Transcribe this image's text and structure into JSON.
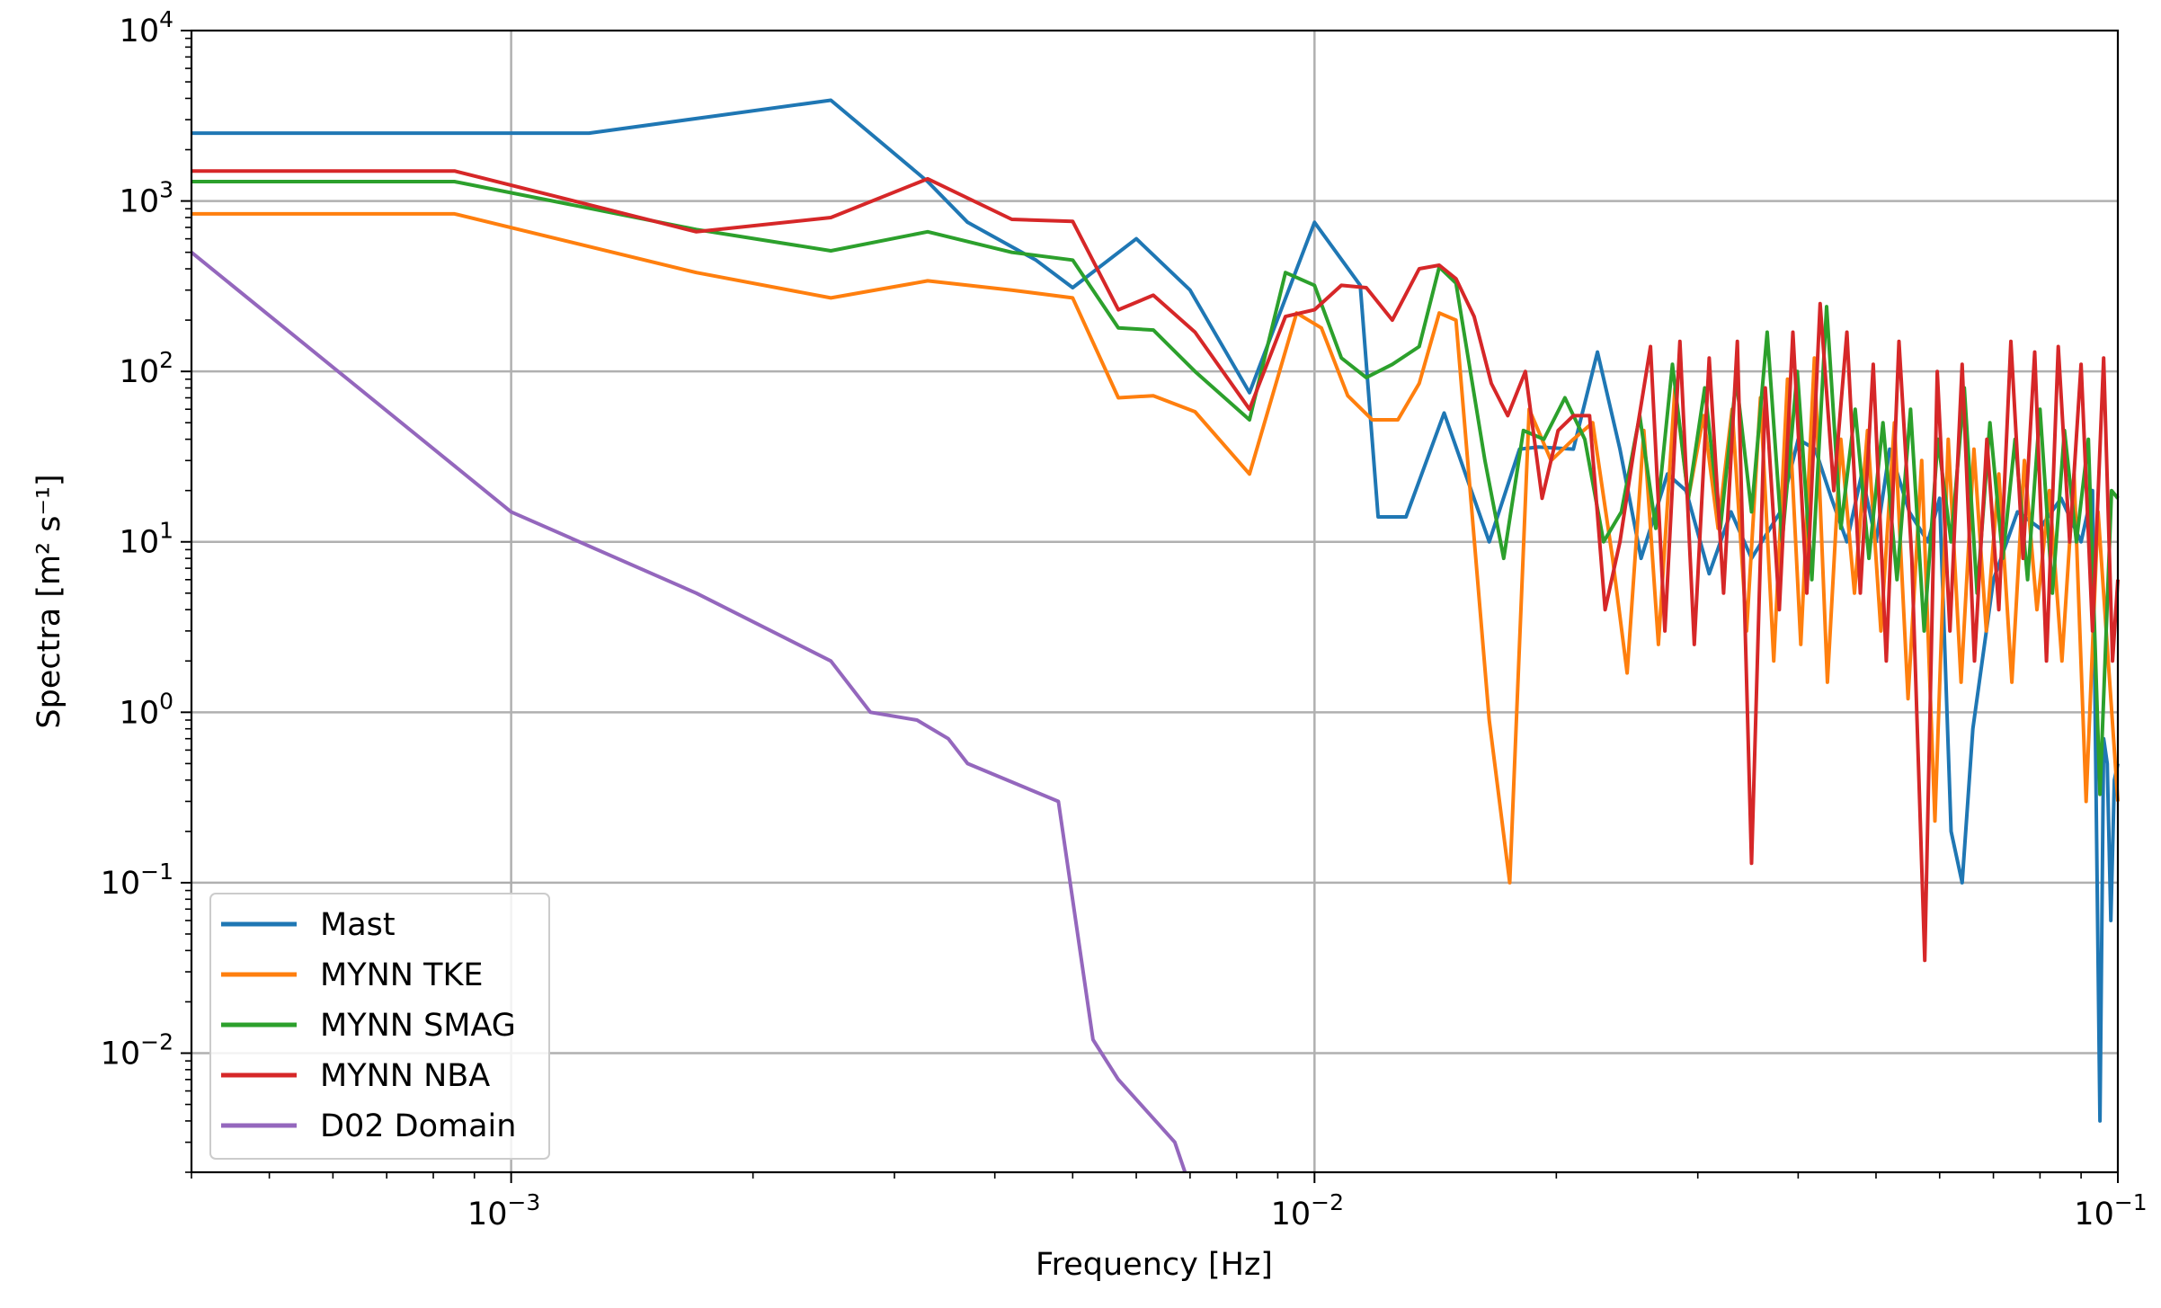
{
  "chart_data": {
    "type": "line",
    "title": "",
    "xlabel": "Frequency [Hz]",
    "ylabel": "Spectra [m² s⁻¹]",
    "xscale": "log",
    "yscale": "log",
    "xlim": [
      0.0004,
      0.1
    ],
    "ylim": [
      0.002,
      10000
    ],
    "grid": "major",
    "legend_position": "lower-left",
    "x_ticks": [
      {
        "value": 0.001,
        "base": "10",
        "exp": "−3"
      },
      {
        "value": 0.01,
        "base": "10",
        "exp": "−2"
      },
      {
        "value": 0.1,
        "base": "10",
        "exp": "−1"
      }
    ],
    "y_ticks": [
      {
        "value": 10000,
        "base": "10",
        "exp": "4"
      },
      {
        "value": 1000,
        "base": "10",
        "exp": "3"
      },
      {
        "value": 100,
        "base": "10",
        "exp": "2"
      },
      {
        "value": 10,
        "base": "10",
        "exp": "1"
      },
      {
        "value": 1,
        "base": "10",
        "exp": "0"
      },
      {
        "value": 0.1,
        "base": "10",
        "exp": "−1"
      },
      {
        "value": 0.01,
        "base": "10",
        "exp": "−2"
      }
    ],
    "series": [
      {
        "name": "Mast",
        "color": "#1f77b4",
        "x": [
          0.0004,
          0.00125,
          0.0025,
          0.0033,
          0.0037,
          0.0045,
          0.005,
          0.006,
          0.007,
          0.0083,
          0.01,
          0.0114,
          0.012,
          0.013,
          0.0145,
          0.0165,
          0.018,
          0.019,
          0.021,
          0.0225,
          0.024,
          0.0255,
          0.0275,
          0.029,
          0.031,
          0.033,
          0.035,
          0.038,
          0.04,
          0.042,
          0.044,
          0.046,
          0.048,
          0.05,
          0.052,
          0.055,
          0.058,
          0.06,
          0.062,
          0.064,
          0.066,
          0.07,
          0.075,
          0.08,
          0.085,
          0.09,
          0.093,
          0.095,
          0.096,
          0.097,
          0.098,
          0.099,
          0.1
        ],
        "y": [
          2500,
          2500,
          3900,
          1300,
          750,
          450,
          310,
          600,
          300,
          75,
          750,
          320,
          14,
          14,
          57,
          10,
          35,
          36,
          35,
          130,
          35,
          8,
          25,
          20,
          6.5,
          15,
          8,
          15,
          40,
          35,
          18,
          10,
          25,
          10,
          35,
          15,
          10,
          18,
          0.2,
          0.1,
          0.8,
          6,
          15,
          12,
          18,
          10,
          20,
          0.004,
          0.7,
          0.5,
          0.06,
          0.4,
          0.5
        ]
      },
      {
        "name": "MYNN TKE",
        "color": "#ff7f0e",
        "x": [
          0.0004,
          0.00085,
          0.0017,
          0.0025,
          0.0033,
          0.0042,
          0.005,
          0.0057,
          0.0063,
          0.0071,
          0.0083,
          0.0095,
          0.0102,
          0.011,
          0.0118,
          0.0127,
          0.0135,
          0.0143,
          0.015,
          0.0165,
          0.0175,
          0.0185,
          0.0197,
          0.021,
          0.0222,
          0.0235,
          0.0245,
          0.0257,
          0.0268,
          0.0281,
          0.0292,
          0.0305,
          0.0318,
          0.0331,
          0.0345,
          0.0359,
          0.0373,
          0.0388,
          0.0403,
          0.0419,
          0.0435,
          0.0452,
          0.047,
          0.0488,
          0.0507,
          0.0527,
          0.0548,
          0.057,
          0.0592,
          0.0615,
          0.0638,
          0.0662,
          0.0686,
          0.0711,
          0.0738,
          0.0765,
          0.0793,
          0.0822,
          0.0852,
          0.0882,
          0.0913,
          0.0945,
          0.1
        ],
        "y": [
          840,
          840,
          380,
          270,
          340,
          300,
          270,
          70,
          72,
          58,
          25,
          220,
          180,
          72,
          52,
          52,
          85,
          220,
          200,
          0.9,
          0.1,
          60,
          30,
          40,
          50,
          8,
          1.7,
          45,
          2.5,
          80,
          18,
          55,
          12,
          60,
          3,
          70,
          2,
          90,
          2.5,
          120,
          1.5,
          40,
          5,
          45,
          3,
          50,
          1.2,
          30,
          0.23,
          40,
          1.5,
          35,
          3,
          25,
          1.5,
          30,
          4,
          20,
          2,
          25,
          0.3,
          15,
          0.3
        ]
      },
      {
        "name": "MYNN SMAG",
        "color": "#2ca02c",
        "x": [
          0.0004,
          0.00085,
          0.0017,
          0.0025,
          0.0033,
          0.0042,
          0.005,
          0.0057,
          0.0063,
          0.0071,
          0.0083,
          0.0092,
          0.01,
          0.0108,
          0.0116,
          0.0125,
          0.0135,
          0.0143,
          0.015,
          0.0163,
          0.0172,
          0.0182,
          0.0193,
          0.0205,
          0.0217,
          0.0229,
          0.0241,
          0.0254,
          0.0266,
          0.0279,
          0.0292,
          0.0306,
          0.032,
          0.0335,
          0.035,
          0.0366,
          0.0382,
          0.0399,
          0.0416,
          0.0434,
          0.0452,
          0.0471,
          0.049,
          0.051,
          0.0531,
          0.0552,
          0.0574,
          0.0597,
          0.062,
          0.0644,
          0.0668,
          0.0693,
          0.0719,
          0.0745,
          0.0772,
          0.08,
          0.0829,
          0.0858,
          0.0888,
          0.0919,
          0.095,
          0.0982,
          0.1
        ],
        "y": [
          1300,
          1300,
          680,
          510,
          660,
          500,
          450,
          180,
          175,
          100,
          52,
          380,
          320,
          120,
          92,
          110,
          140,
          410,
          330,
          30,
          8,
          45,
          40,
          70,
          40,
          10,
          15,
          55,
          12,
          110,
          18,
          80,
          12,
          90,
          15,
          170,
          10,
          100,
          6,
          240,
          12,
          60,
          8,
          50,
          6,
          60,
          3,
          40,
          10,
          80,
          5,
          50,
          8,
          40,
          6,
          60,
          5,
          45,
          10,
          40,
          0.33,
          20,
          18
        ]
      },
      {
        "name": "MYNN NBA",
        "color": "#d62728",
        "x": [
          0.0004,
          0.00085,
          0.0017,
          0.0025,
          0.0033,
          0.0042,
          0.005,
          0.0057,
          0.0063,
          0.0071,
          0.0083,
          0.0092,
          0.01,
          0.0108,
          0.0116,
          0.0125,
          0.0135,
          0.0143,
          0.015,
          0.0158,
          0.0166,
          0.0174,
          0.0183,
          0.0192,
          0.0201,
          0.021,
          0.022,
          0.023,
          0.024,
          0.0251,
          0.0262,
          0.0273,
          0.0285,
          0.0297,
          0.031,
          0.0323,
          0.0336,
          0.035,
          0.0364,
          0.0379,
          0.0394,
          0.041,
          0.0426,
          0.0443,
          0.046,
          0.0478,
          0.0496,
          0.0515,
          0.0534,
          0.0554,
          0.0575,
          0.0596,
          0.0618,
          0.064,
          0.0663,
          0.0687,
          0.0711,
          0.0736,
          0.0762,
          0.0788,
          0.0815,
          0.0843,
          0.0871,
          0.09,
          0.093,
          0.096,
          0.0985,
          0.1
        ],
        "y": [
          1500,
          1500,
          660,
          800,
          1350,
          780,
          760,
          230,
          280,
          170,
          60,
          210,
          230,
          320,
          310,
          200,
          400,
          420,
          350,
          210,
          85,
          55,
          100,
          18,
          45,
          55,
          55,
          4,
          10,
          40,
          140,
          3,
          150,
          2.5,
          120,
          5,
          150,
          0.13,
          80,
          4,
          170,
          5,
          250,
          20,
          170,
          5,
          110,
          2,
          150,
          8,
          0.035,
          100,
          3,
          110,
          2,
          40,
          4,
          150,
          8,
          130,
          2,
          140,
          10,
          110,
          3,
          120,
          2,
          6
        ]
      },
      {
        "name": "D02 Domain",
        "color": "#9467bd",
        "x": [
          0.0004,
          0.001,
          0.0017,
          0.0025,
          0.0028,
          0.0032,
          0.0035,
          0.0037,
          0.0048,
          0.0053,
          0.0057,
          0.0062,
          0.0067,
          0.0069
        ],
        "y": [
          500,
          15,
          5,
          2,
          1,
          0.9,
          0.7,
          0.5,
          0.3,
          0.012,
          0.007,
          0.0045,
          0.003,
          0.002
        ]
      }
    ]
  }
}
